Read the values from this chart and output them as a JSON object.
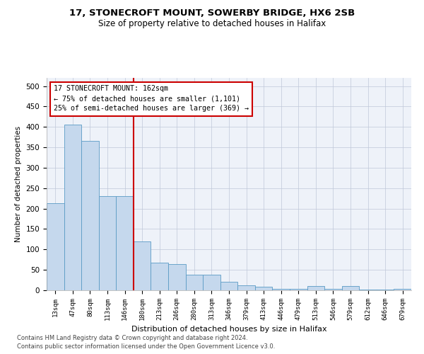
{
  "title1": "17, STONECROFT MOUNT, SOWERBY BRIDGE, HX6 2SB",
  "title2": "Size of property relative to detached houses in Halifax",
  "xlabel": "Distribution of detached houses by size in Halifax",
  "ylabel": "Number of detached properties",
  "categories": [
    "13sqm",
    "47sqm",
    "80sqm",
    "113sqm",
    "146sqm",
    "180sqm",
    "213sqm",
    "246sqm",
    "280sqm",
    "313sqm",
    "346sqm",
    "379sqm",
    "413sqm",
    "446sqm",
    "479sqm",
    "513sqm",
    "546sqm",
    "579sqm",
    "612sqm",
    "646sqm",
    "679sqm"
  ],
  "values": [
    213,
    405,
    365,
    230,
    230,
    120,
    68,
    65,
    38,
    38,
    20,
    13,
    8,
    4,
    4,
    10,
    4,
    10,
    1,
    1,
    3
  ],
  "bar_color": "#c5d8ed",
  "bar_edge_color": "#5a9bc5",
  "vline_x": 4.5,
  "vline_color": "#cc0000",
  "annotation_title": "17 STONECROFT MOUNT: 162sqm",
  "annotation_line1": "← 75% of detached houses are smaller (1,101)",
  "annotation_line2": "25% of semi-detached houses are larger (369) →",
  "annotation_box_facecolor": "#ffffff",
  "annotation_box_edgecolor": "#cc0000",
  "ylim": [
    0,
    520
  ],
  "yticks": [
    0,
    50,
    100,
    150,
    200,
    250,
    300,
    350,
    400,
    450,
    500
  ],
  "footer1": "Contains HM Land Registry data © Crown copyright and database right 2024.",
  "footer2": "Contains public sector information licensed under the Open Government Licence v3.0.",
  "bg_color": "#eef2f9",
  "grid_color": "#c0c8d8",
  "title1_fontsize": 9.5,
  "title2_fontsize": 8.5
}
